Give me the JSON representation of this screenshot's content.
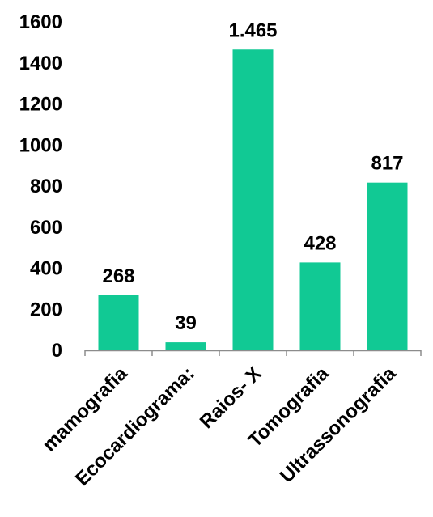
{
  "chart_data": {
    "type": "bar",
    "categories": [
      "mamografia",
      "Ecocardiograma:",
      "Raios- X",
      "Tomografia",
      "Ultrassonografia"
    ],
    "values": [
      268,
      39,
      1465,
      428,
      817
    ],
    "data_labels": [
      "268",
      "39",
      "1.465",
      "428",
      "817"
    ],
    "y_ticks": [
      "0",
      "200",
      "400",
      "600",
      "800",
      "1000",
      "1200",
      "1400",
      "1600"
    ],
    "ylim": [
      0,
      1600
    ],
    "grid": false,
    "legend": "none",
    "colors": {
      "bar": "#11C994",
      "axis": "#8C8C8C",
      "text": "#000000"
    }
  }
}
